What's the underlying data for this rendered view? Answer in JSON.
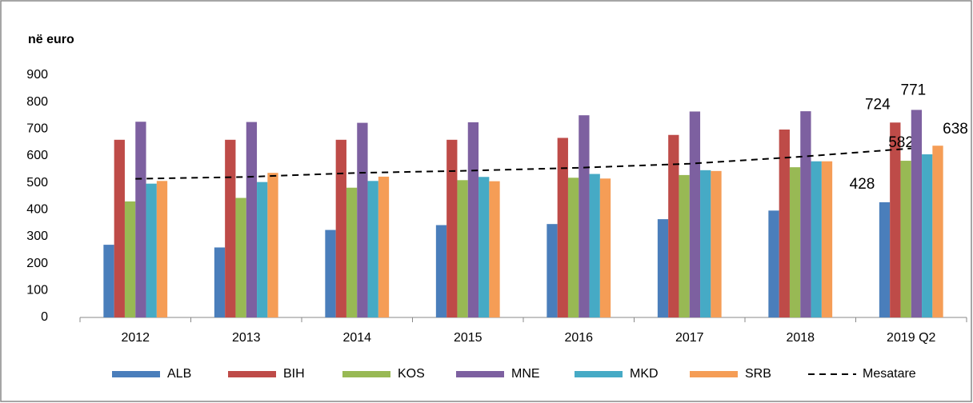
{
  "chart_data": {
    "type": "bar",
    "y_label": "në euro",
    "categories": [
      "2012",
      "2013",
      "2014",
      "2015",
      "2016",
      "2017",
      "2018",
      "2019 Q2"
    ],
    "series": [
      {
        "name": "ALB",
        "color": "#4a7ebb",
        "values": [
          270,
          260,
          325,
          343,
          347,
          365,
          397,
          428
        ],
        "value_labels": [
          null,
          null,
          null,
          null,
          null,
          null,
          null,
          "428"
        ]
      },
      {
        "name": "BIH",
        "color": "#be4b48",
        "values": [
          660,
          660,
          660,
          660,
          667,
          678,
          698,
          724
        ],
        "value_labels": [
          null,
          null,
          null,
          null,
          null,
          null,
          null,
          "724"
        ]
      },
      {
        "name": "KOS",
        "color": "#98b954",
        "values": [
          431,
          444,
          482,
          510,
          519,
          529,
          558,
          582
        ],
        "value_labels": [
          null,
          null,
          null,
          null,
          null,
          null,
          null,
          "582"
        ]
      },
      {
        "name": "MNE",
        "color": "#7d60a0",
        "values": [
          727,
          726,
          723,
          725,
          751,
          765,
          766,
          771
        ],
        "value_labels": [
          null,
          null,
          null,
          null,
          null,
          null,
          null,
          "771"
        ]
      },
      {
        "name": "MKD",
        "color": "#46aac5",
        "values": [
          497,
          503,
          507,
          522,
          533,
          547,
          580,
          606
        ]
      },
      {
        "name": "SRB",
        "color": "#f59d56",
        "values": [
          507,
          537,
          523,
          506,
          516,
          544,
          580,
          638
        ],
        "value_labels": [
          null,
          null,
          null,
          null,
          null,
          null,
          null,
          "638"
        ]
      }
    ],
    "trend": {
      "name": "Mesatare",
      "color": "#000000",
      "type": "line",
      "dashed": true,
      "values": [
        515,
        522,
        537,
        545,
        556,
        571,
        597,
        628
      ]
    },
    "ylim": [
      0,
      900
    ],
    "yticks": [
      0,
      100,
      200,
      300,
      400,
      500,
      600,
      700,
      800,
      900
    ],
    "legend": "bottom"
  }
}
